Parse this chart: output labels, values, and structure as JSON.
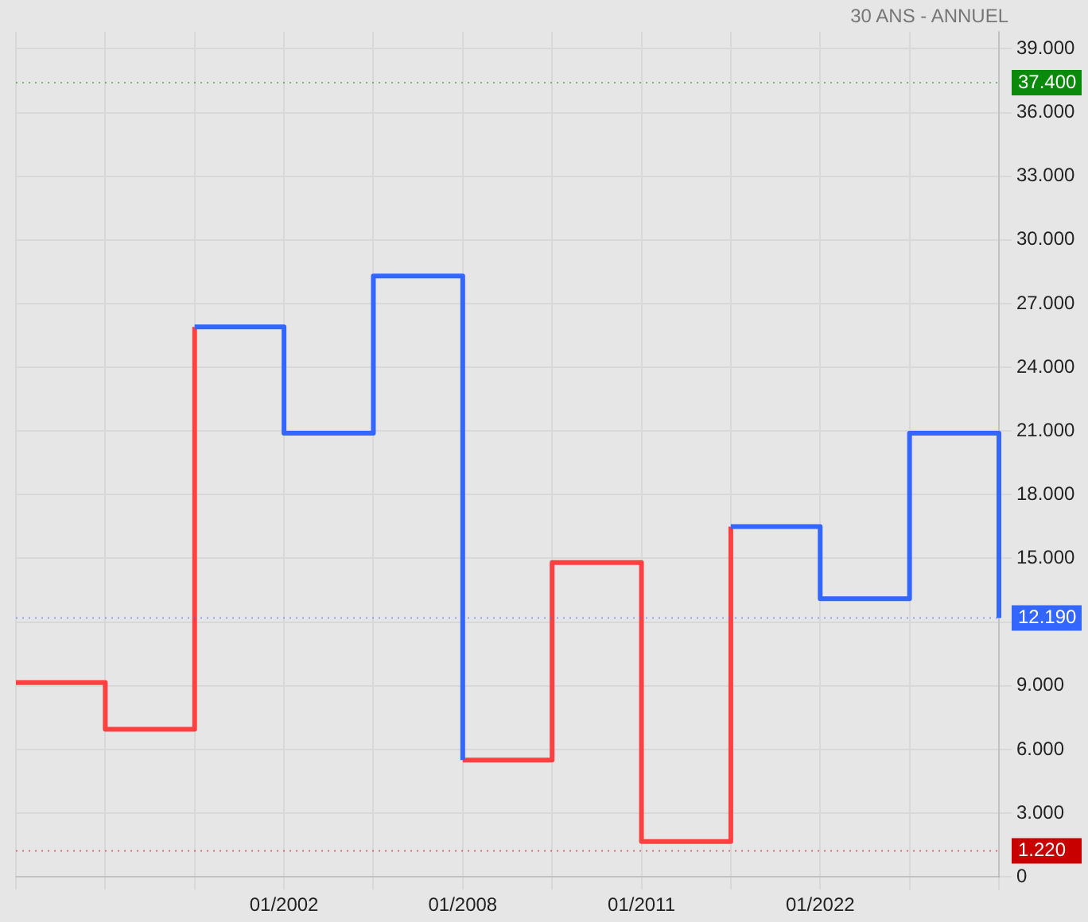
{
  "chart_data": {
    "type": "step",
    "subtitle": "30 ANS - ANNUEL",
    "categories": [
      null,
      null,
      null,
      "01/2002",
      null,
      "01/2008",
      null,
      "01/2011",
      null,
      "01/2022",
      null,
      null
    ],
    "series": [
      {
        "color": "#ff4040",
        "values": [
          9150,
          6950,
          25900,
          null,
          null,
          5500,
          14800,
          1660,
          16500,
          null,
          null,
          null
        ]
      },
      {
        "color": "#3366ff",
        "values": [
          null,
          null,
          25900,
          20900,
          28300,
          5500,
          null,
          null,
          16500,
          13100,
          20900,
          12190
        ]
      }
    ],
    "ylim": [
      0,
      39800
    ],
    "yticks": [
      {
        "value": 0,
        "label": "0"
      },
      {
        "value": 3000,
        "label": "3.000"
      },
      {
        "value": 6000,
        "label": "6.000"
      },
      {
        "value": 9000,
        "label": "9.000"
      },
      {
        "value": 12000,
        "label": null
      },
      {
        "value": 15000,
        "label": "15.000"
      },
      {
        "value": 18000,
        "label": "18.000"
      },
      {
        "value": 21000,
        "label": "21.000"
      },
      {
        "value": 24000,
        "label": "24.000"
      },
      {
        "value": 27000,
        "label": "27.000"
      },
      {
        "value": 30000,
        "label": "30.000"
      },
      {
        "value": 33000,
        "label": "33.000"
      },
      {
        "value": 36000,
        "label": "36.000"
      },
      {
        "value": 39000,
        "label": "39.000"
      }
    ],
    "ref_lines": [
      {
        "axis": "y",
        "value": 37400,
        "label": "37.400",
        "color": "#0a8a0a",
        "line_style": "dotted"
      },
      {
        "axis": "y",
        "value": 12190,
        "label": "12.190",
        "color": "#3366ff",
        "line_style": "dotted"
      },
      {
        "axis": "y",
        "value": 1220,
        "label": "1.220",
        "color": "#c80000",
        "line_style": "dotted"
      }
    ],
    "grid": true,
    "legend": false
  }
}
